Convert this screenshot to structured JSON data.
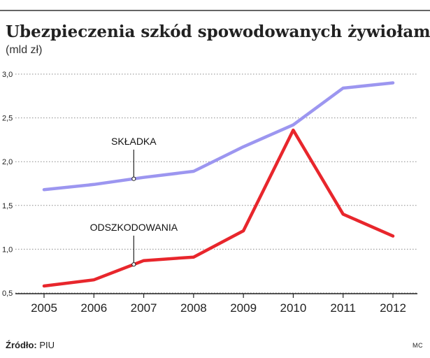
{
  "chart_data": {
    "type": "line",
    "title": "Ubezpieczenia szkód spowodowanych żywiołami",
    "subtitle": "(mld zł)",
    "x": [
      "2005",
      "2006",
      "2007",
      "2008",
      "2009",
      "2010",
      "2011",
      "2012"
    ],
    "ylim": [
      0.5,
      3.0
    ],
    "yticks": [
      "0,5",
      "1,0",
      "1,5",
      "2,0",
      "2,5",
      "3,0"
    ],
    "ytick_values": [
      0.5,
      1.0,
      1.5,
      2.0,
      2.5,
      3.0
    ],
    "grid": true,
    "series": [
      {
        "name": "SKŁADKA",
        "color": "#9c96f0",
        "values": [
          1.68,
          1.74,
          1.82,
          1.89,
          2.17,
          2.42,
          2.84,
          2.9
        ],
        "callout_x": 2006.8
      },
      {
        "name": "ODSZKODOWANIA",
        "color": "#e8262c",
        "values": [
          0.58,
          0.65,
          0.87,
          0.91,
          1.21,
          2.36,
          1.4,
          1.15
        ],
        "callout_x": 2006.8
      }
    ]
  },
  "footer": {
    "source_label": "Źródło:",
    "source_value": "PIU",
    "credit": "MC"
  }
}
